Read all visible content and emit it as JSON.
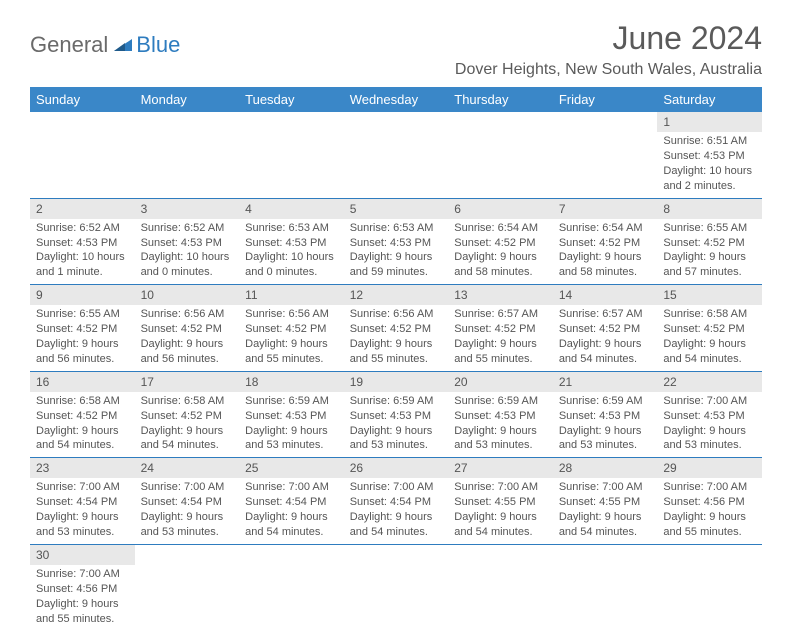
{
  "logo": {
    "text1": "General",
    "text2": "Blue"
  },
  "title": "June 2024",
  "location": "Dover Heights, New South Wales, Australia",
  "weekdays": [
    "Sunday",
    "Monday",
    "Tuesday",
    "Wednesday",
    "Thursday",
    "Friday",
    "Saturday"
  ],
  "colors": {
    "header_bg": "#3a87c8",
    "header_text": "#ffffff",
    "daynum_bg": "#e8e8e8",
    "border": "#2e7cbf",
    "logo_gray": "#6a6a6a",
    "logo_blue": "#2e7cbf",
    "text": "#555555"
  },
  "weeks": [
    [
      null,
      null,
      null,
      null,
      null,
      null,
      {
        "n": "1",
        "sr": "Sunrise: 6:51 AM",
        "ss": "Sunset: 4:53 PM",
        "d1": "Daylight: 10 hours",
        "d2": "and 2 minutes."
      }
    ],
    [
      {
        "n": "2",
        "sr": "Sunrise: 6:52 AM",
        "ss": "Sunset: 4:53 PM",
        "d1": "Daylight: 10 hours",
        "d2": "and 1 minute."
      },
      {
        "n": "3",
        "sr": "Sunrise: 6:52 AM",
        "ss": "Sunset: 4:53 PM",
        "d1": "Daylight: 10 hours",
        "d2": "and 0 minutes."
      },
      {
        "n": "4",
        "sr": "Sunrise: 6:53 AM",
        "ss": "Sunset: 4:53 PM",
        "d1": "Daylight: 10 hours",
        "d2": "and 0 minutes."
      },
      {
        "n": "5",
        "sr": "Sunrise: 6:53 AM",
        "ss": "Sunset: 4:53 PM",
        "d1": "Daylight: 9 hours",
        "d2": "and 59 minutes."
      },
      {
        "n": "6",
        "sr": "Sunrise: 6:54 AM",
        "ss": "Sunset: 4:52 PM",
        "d1": "Daylight: 9 hours",
        "d2": "and 58 minutes."
      },
      {
        "n": "7",
        "sr": "Sunrise: 6:54 AM",
        "ss": "Sunset: 4:52 PM",
        "d1": "Daylight: 9 hours",
        "d2": "and 58 minutes."
      },
      {
        "n": "8",
        "sr": "Sunrise: 6:55 AM",
        "ss": "Sunset: 4:52 PM",
        "d1": "Daylight: 9 hours",
        "d2": "and 57 minutes."
      }
    ],
    [
      {
        "n": "9",
        "sr": "Sunrise: 6:55 AM",
        "ss": "Sunset: 4:52 PM",
        "d1": "Daylight: 9 hours",
        "d2": "and 56 minutes."
      },
      {
        "n": "10",
        "sr": "Sunrise: 6:56 AM",
        "ss": "Sunset: 4:52 PM",
        "d1": "Daylight: 9 hours",
        "d2": "and 56 minutes."
      },
      {
        "n": "11",
        "sr": "Sunrise: 6:56 AM",
        "ss": "Sunset: 4:52 PM",
        "d1": "Daylight: 9 hours",
        "d2": "and 55 minutes."
      },
      {
        "n": "12",
        "sr": "Sunrise: 6:56 AM",
        "ss": "Sunset: 4:52 PM",
        "d1": "Daylight: 9 hours",
        "d2": "and 55 minutes."
      },
      {
        "n": "13",
        "sr": "Sunrise: 6:57 AM",
        "ss": "Sunset: 4:52 PM",
        "d1": "Daylight: 9 hours",
        "d2": "and 55 minutes."
      },
      {
        "n": "14",
        "sr": "Sunrise: 6:57 AM",
        "ss": "Sunset: 4:52 PM",
        "d1": "Daylight: 9 hours",
        "d2": "and 54 minutes."
      },
      {
        "n": "15",
        "sr": "Sunrise: 6:58 AM",
        "ss": "Sunset: 4:52 PM",
        "d1": "Daylight: 9 hours",
        "d2": "and 54 minutes."
      }
    ],
    [
      {
        "n": "16",
        "sr": "Sunrise: 6:58 AM",
        "ss": "Sunset: 4:52 PM",
        "d1": "Daylight: 9 hours",
        "d2": "and 54 minutes."
      },
      {
        "n": "17",
        "sr": "Sunrise: 6:58 AM",
        "ss": "Sunset: 4:52 PM",
        "d1": "Daylight: 9 hours",
        "d2": "and 54 minutes."
      },
      {
        "n": "18",
        "sr": "Sunrise: 6:59 AM",
        "ss": "Sunset: 4:53 PM",
        "d1": "Daylight: 9 hours",
        "d2": "and 53 minutes."
      },
      {
        "n": "19",
        "sr": "Sunrise: 6:59 AM",
        "ss": "Sunset: 4:53 PM",
        "d1": "Daylight: 9 hours",
        "d2": "and 53 minutes."
      },
      {
        "n": "20",
        "sr": "Sunrise: 6:59 AM",
        "ss": "Sunset: 4:53 PM",
        "d1": "Daylight: 9 hours",
        "d2": "and 53 minutes."
      },
      {
        "n": "21",
        "sr": "Sunrise: 6:59 AM",
        "ss": "Sunset: 4:53 PM",
        "d1": "Daylight: 9 hours",
        "d2": "and 53 minutes."
      },
      {
        "n": "22",
        "sr": "Sunrise: 7:00 AM",
        "ss": "Sunset: 4:53 PM",
        "d1": "Daylight: 9 hours",
        "d2": "and 53 minutes."
      }
    ],
    [
      {
        "n": "23",
        "sr": "Sunrise: 7:00 AM",
        "ss": "Sunset: 4:54 PM",
        "d1": "Daylight: 9 hours",
        "d2": "and 53 minutes."
      },
      {
        "n": "24",
        "sr": "Sunrise: 7:00 AM",
        "ss": "Sunset: 4:54 PM",
        "d1": "Daylight: 9 hours",
        "d2": "and 53 minutes."
      },
      {
        "n": "25",
        "sr": "Sunrise: 7:00 AM",
        "ss": "Sunset: 4:54 PM",
        "d1": "Daylight: 9 hours",
        "d2": "and 54 minutes."
      },
      {
        "n": "26",
        "sr": "Sunrise: 7:00 AM",
        "ss": "Sunset: 4:54 PM",
        "d1": "Daylight: 9 hours",
        "d2": "and 54 minutes."
      },
      {
        "n": "27",
        "sr": "Sunrise: 7:00 AM",
        "ss": "Sunset: 4:55 PM",
        "d1": "Daylight: 9 hours",
        "d2": "and 54 minutes."
      },
      {
        "n": "28",
        "sr": "Sunrise: 7:00 AM",
        "ss": "Sunset: 4:55 PM",
        "d1": "Daylight: 9 hours",
        "d2": "and 54 minutes."
      },
      {
        "n": "29",
        "sr": "Sunrise: 7:00 AM",
        "ss": "Sunset: 4:56 PM",
        "d1": "Daylight: 9 hours",
        "d2": "and 55 minutes."
      }
    ],
    [
      {
        "n": "30",
        "sr": "Sunrise: 7:00 AM",
        "ss": "Sunset: 4:56 PM",
        "d1": "Daylight: 9 hours",
        "d2": "and 55 minutes."
      },
      null,
      null,
      null,
      null,
      null,
      null
    ]
  ]
}
